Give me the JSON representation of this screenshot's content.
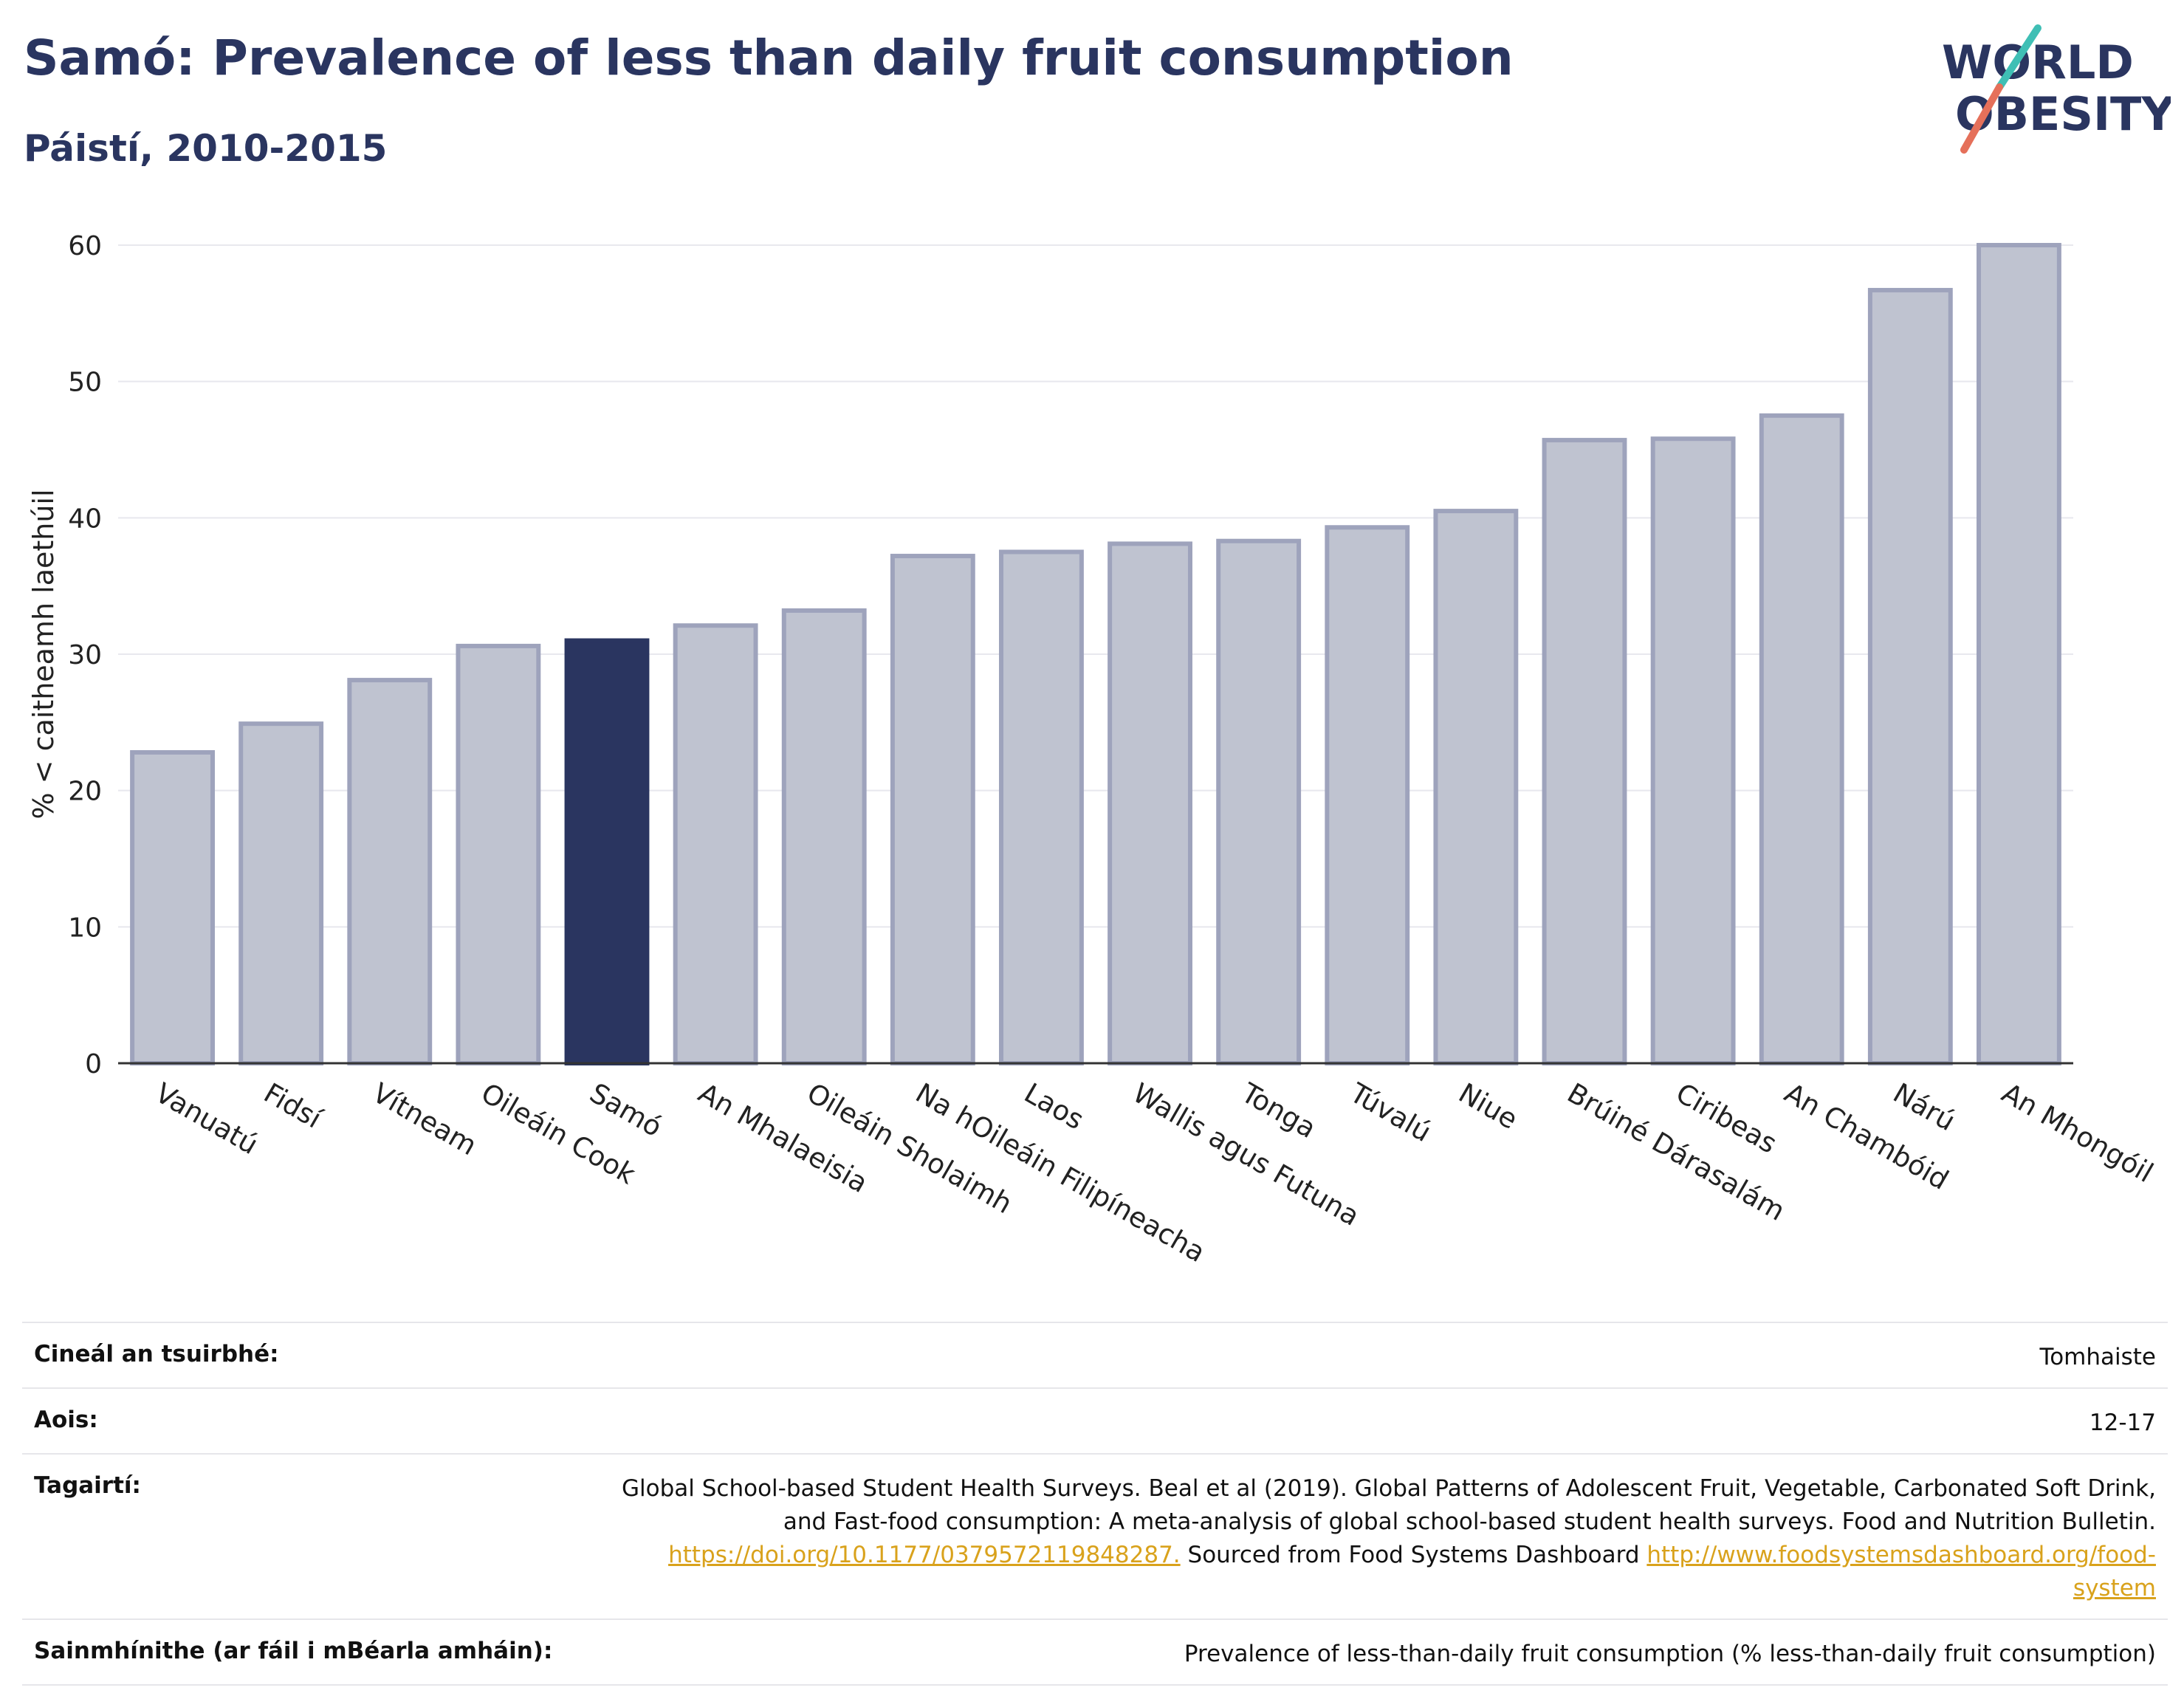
{
  "header": {
    "title": "Samó: Prevalence of less than daily fruit consumption",
    "subtitle": "Páistí, 2010-2015"
  },
  "logo": {
    "line1": "WORLD",
    "line2": "OBESITY",
    "accent_teal": "#3fbfb5",
    "accent_coral": "#e5705a",
    "text_color": "#2a3560"
  },
  "chart_data": {
    "type": "bar",
    "categories": [
      "Vanuatú",
      "Fidsí",
      "Vítneam",
      "Oileáin Cook",
      "Samó",
      "An Mhalaeisia",
      "Oileáin Sholaimh",
      "Na hOileáin Filipíneacha",
      "Laos",
      "Wallis agus Futuna",
      "Tonga",
      "Túvalú",
      "Niue",
      "Brúiné Dárasalám",
      "Ciribeas",
      "An Chambóid",
      "Nárú",
      "An Mhongóil"
    ],
    "values": [
      22.8,
      24.9,
      28.1,
      30.6,
      31.0,
      32.1,
      33.2,
      37.2,
      37.5,
      38.1,
      38.3,
      39.3,
      40.5,
      45.7,
      45.8,
      47.5,
      56.7,
      60.0
    ],
    "highlight": "Samó",
    "ylabel": "% < caitheamh laethúil",
    "xlabel": "",
    "ylim": [
      0,
      60
    ],
    "yticks": [
      0,
      10,
      20,
      30,
      40,
      50,
      60
    ],
    "grid": true,
    "colors": {
      "bar": "#bfc3d0",
      "bar_edge": "#9ea3bc",
      "highlight": "#2a3560"
    }
  },
  "info": {
    "survey_type_label": "Cineál an tsuirbhé:",
    "survey_type_value": "Tomhaiste",
    "age_label": "Aois:",
    "age_value": "12-17",
    "references_label": "Tagairtí:",
    "references_text_1": "Global School-based Student Health Surveys. Beal et al (2019). Global Patterns of Adolescent Fruit, Vegetable, Carbonated Soft Drink, and Fast-food consumption: A meta-analysis of global school-based student health surveys. Food and Nutrition Bulletin.",
    "references_link_1": "https://doi.org/10.1177/0379572119848287.",
    "references_text_2": "Sourced from Food Systems Dashboard",
    "references_link_2": "http://www.foodsystemsdashboard.org/food-system",
    "definitions_label": "Sainmhínithe (ar fáil i mBéarla amháin):",
    "definitions_value": "Prevalence of less-than-daily fruit consumption (% less-than-daily fruit consumption)"
  }
}
